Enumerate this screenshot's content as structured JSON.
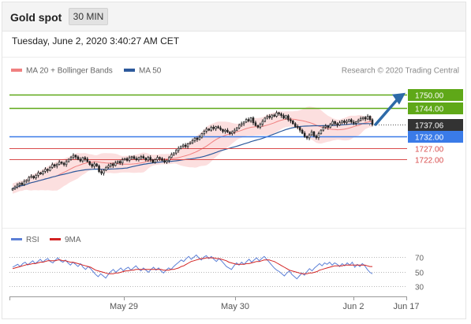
{
  "header": {
    "title": "Gold spot",
    "timeframe_button": "30 MIN"
  },
  "timestamp": "Tuesday, June 2, 2020 3:40:27 AM CET",
  "legend": {
    "ma20": "MA 20 + Bollinger Bands",
    "ma50": "MA 50",
    "credit": "Research © 2020 Trading Central",
    "rsi": "RSI",
    "rsi_ma": "9MA"
  },
  "colors": {
    "resistance": "#5fa818",
    "support": "#d94c4c",
    "pivot": "#3a7be8",
    "price_tag": "#333333",
    "ma20": "#f08080",
    "ma50": "#2d5a9c",
    "bands": "#fbd4d4",
    "candle_up": "#ffffff",
    "candle_down": "#222222",
    "arrow": "#2d6aa8",
    "rsi": "#5b7fd6",
    "rsi_ma": "#d22222"
  },
  "chart_data": [
    {
      "type": "candlestick",
      "ylim": [
        1695,
        1755
      ],
      "levels": [
        {
          "label": "1750.00",
          "value": 1750.0,
          "kind": "resistance"
        },
        {
          "label": "1744.00",
          "value": 1744.0,
          "kind": "resistance"
        },
        {
          "label": "1737.06",
          "value": 1737.06,
          "kind": "last"
        },
        {
          "label": "1732.00",
          "value": 1732.0,
          "kind": "pivot"
        },
        {
          "label": "1727.00",
          "value": 1727.0,
          "kind": "support"
        },
        {
          "label": "1722.00",
          "value": 1722.0,
          "kind": "support"
        }
      ],
      "xticks": [
        "May 29",
        "May 30",
        "Jun 2",
        "Jun 17"
      ],
      "close": [
        1709.5,
        1710.2,
        1711.0,
        1711.8,
        1711.2,
        1712.6,
        1713.1,
        1714.3,
        1714.8,
        1714.1,
        1715.2,
        1716.3,
        1715.8,
        1716.9,
        1717.8,
        1717.3,
        1718.6,
        1719.8,
        1719.2,
        1719.9,
        1720.9,
        1720.4,
        1719.8,
        1721.1,
        1722.1,
        1722.9,
        1723.8,
        1723.1,
        1722.1,
        1721.4,
        1722.8,
        1722.2,
        1721.1,
        1719.9,
        1719.1,
        1720.1,
        1719.2,
        1716.8,
        1716.1,
        1717.4,
        1718.6,
        1719.3,
        1720.1,
        1719.4,
        1720.6,
        1721.2,
        1720.5,
        1721.9,
        1722.4,
        1721.6,
        1722.8,
        1723.2,
        1722.4,
        1721.9,
        1722.8,
        1723.3,
        1722.6,
        1721.8,
        1722.9,
        1721.9,
        1720.8,
        1721.9,
        1722.9,
        1722.4,
        1721.6,
        1720.9,
        1721.6,
        1722.9,
        1724.1,
        1724.8,
        1725.9,
        1726.8,
        1727.6,
        1728.2,
        1727.6,
        1728.8,
        1729.2,
        1730.1,
        1731.2,
        1730.6,
        1731.6,
        1733.1,
        1734.2,
        1735.1,
        1734.6,
        1735.9,
        1735.3,
        1736.1,
        1735.6,
        1734.9,
        1734.1,
        1734.6,
        1733.8,
        1733.1,
        1733.9,
        1734.6,
        1735.6,
        1736.8,
        1737.4,
        1738.1,
        1739.2,
        1738.6,
        1739.9,
        1737.8,
        1736.6,
        1735.9,
        1737.2,
        1738.4,
        1739.8,
        1740.6,
        1740.1,
        1741.1,
        1740.6,
        1742.1,
        1741.6,
        1740.9,
        1739.8,
        1740.8,
        1739.1,
        1738.6,
        1737.4,
        1736.2,
        1735.8,
        1734.6,
        1733.3,
        1731.9,
        1731.3,
        1732.6,
        1733.9,
        1732.1,
        1731.4,
        1733.1,
        1734.6,
        1735.9,
        1736.4,
        1735.8,
        1737.1,
        1738.3,
        1737.4,
        1736.8,
        1737.8,
        1738.6,
        1737.9,
        1738.4,
        1739.1,
        1738.1,
        1737.6,
        1738.2,
        1738.9,
        1739.6,
        1740.1,
        1739.4,
        1740.6,
        1739.1,
        1737.06
      ]
    },
    {
      "type": "line",
      "name": "RSI",
      "ylim": [
        20,
        80
      ],
      "yticks": [
        70,
        50,
        30
      ],
      "series": [
        {
          "name": "RSI",
          "values": [
            56,
            58,
            60,
            57,
            61,
            63,
            59,
            62,
            65,
            61,
            64,
            67,
            63,
            66,
            68,
            64,
            62,
            66,
            69,
            65,
            63,
            66,
            62,
            59,
            63,
            60,
            57,
            61,
            56,
            53,
            57,
            54,
            50,
            46,
            43,
            47,
            44,
            41,
            46,
            50,
            53,
            49,
            52,
            55,
            51,
            54,
            56,
            52,
            55,
            58,
            54,
            51,
            55,
            52,
            49,
            53,
            56,
            52,
            55,
            51,
            48,
            52,
            55,
            53,
            57,
            60,
            63,
            66,
            64,
            68,
            71,
            67,
            70,
            73,
            69,
            66,
            70,
            72,
            68,
            71,
            67,
            64,
            68,
            65,
            61,
            57,
            55,
            53,
            58,
            62,
            59,
            63,
            60,
            64,
            67,
            63,
            66,
            69,
            65,
            68,
            71,
            67,
            63,
            59,
            55,
            52,
            50,
            47,
            44,
            48,
            51,
            46,
            43,
            40,
            44,
            48,
            45,
            50,
            54,
            51,
            55,
            58,
            61,
            58,
            62,
            60,
            63,
            59,
            62,
            60,
            57,
            61,
            58,
            62,
            59,
            63,
            56,
            60,
            57,
            61,
            58,
            53,
            49,
            47
          ]
        },
        {
          "name": "9MA",
          "values": [
            54,
            55,
            56,
            57,
            58,
            59,
            60,
            60,
            61,
            61,
            62,
            63,
            63,
            64,
            65,
            65,
            65,
            65,
            66,
            66,
            65,
            65,
            64,
            63,
            63,
            62,
            61,
            60,
            59,
            58,
            57,
            56,
            54,
            52,
            51,
            50,
            49,
            48,
            47,
            47,
            47,
            48,
            48,
            49,
            50,
            51,
            51,
            52,
            52,
            53,
            53,
            53,
            53,
            53,
            53,
            53,
            53,
            53,
            53,
            53,
            52,
            52,
            52,
            53,
            53,
            54,
            55,
            57,
            58,
            60,
            62,
            64,
            65,
            66,
            67,
            68,
            68,
            69,
            69,
            69,
            69,
            68,
            68,
            67,
            66,
            65,
            63,
            62,
            61,
            60,
            60,
            60,
            60,
            61,
            61,
            62,
            63,
            64,
            64,
            65,
            66,
            66,
            66,
            65,
            64,
            62,
            60,
            58,
            56,
            54,
            52,
            51,
            50,
            49,
            48,
            47,
            47,
            47,
            48,
            48,
            49,
            50,
            52,
            53,
            54,
            55,
            56,
            57,
            58,
            58,
            58,
            58,
            59,
            59,
            59,
            59,
            59,
            59,
            59,
            59,
            59,
            58,
            57,
            57
          ]
        }
      ]
    }
  ]
}
